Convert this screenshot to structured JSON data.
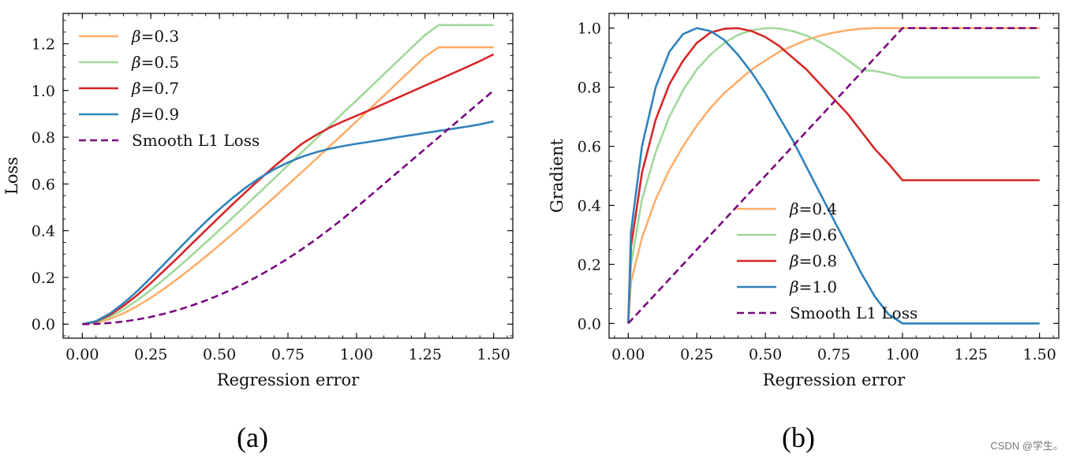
{
  "chart_data": [
    {
      "panel": "(a)",
      "type": "line",
      "xlabel": "Regression error",
      "ylabel": "Loss",
      "xlim": [
        -0.07,
        1.57
      ],
      "ylim": [
        -0.06,
        1.33
      ],
      "xticks": [
        0.0,
        0.25,
        0.5,
        0.75,
        1.0,
        1.25,
        1.5
      ],
      "xtick_labels": [
        "0.00",
        "0.25",
        "0.50",
        "0.75",
        "1.00",
        "1.25",
        "1.50"
      ],
      "yticks": [
        0.0,
        0.2,
        0.4,
        0.6,
        0.8,
        1.0,
        1.2
      ],
      "ytick_labels": [
        "0.0",
        "0.2",
        "0.4",
        "0.6",
        "0.8",
        "1.0",
        "1.2"
      ],
      "legend_position": "top-left",
      "x": [
        0,
        0.05,
        0.1,
        0.15,
        0.2,
        0.25,
        0.3,
        0.35,
        0.4,
        0.45,
        0.5,
        0.55,
        0.6,
        0.65,
        0.7,
        0.75,
        0.8,
        0.85,
        0.9,
        0.95,
        1.0,
        1.05,
        1.1,
        1.15,
        1.2,
        1.25,
        1.3,
        1.35,
        1.4,
        1.45,
        1.5
      ],
      "series": [
        {
          "name": "β=0.3",
          "color": "#fdae6b",
          "dash": "solid",
          "values": [
            0.0,
            0.006,
            0.022,
            0.046,
            0.077,
            0.113,
            0.153,
            0.196,
            0.242,
            0.289,
            0.338,
            0.388,
            0.439,
            0.491,
            0.543,
            0.597,
            0.65,
            0.704,
            0.759,
            0.813,
            0.868,
            0.923,
            0.978,
            1.034,
            1.09,
            1.145,
            1.185,
            1.185,
            1.185,
            1.185,
            1.185
          ]
        },
        {
          "name": "β=0.5",
          "color": "#a1d99b",
          "dash": "solid",
          "values": [
            0.0,
            0.009,
            0.031,
            0.063,
            0.102,
            0.146,
            0.194,
            0.244,
            0.296,
            0.349,
            0.403,
            0.458,
            0.513,
            0.568,
            0.624,
            0.68,
            0.735,
            0.791,
            0.847,
            0.903,
            0.958,
            1.014,
            1.07,
            1.126,
            1.182,
            1.238,
            1.28,
            1.28,
            1.28,
            1.28,
            1.28
          ]
        },
        {
          "name": "β=0.7",
          "color": "#d62728",
          "dash": "solid",
          "values": [
            0.0,
            0.011,
            0.039,
            0.078,
            0.124,
            0.176,
            0.231,
            0.287,
            0.345,
            0.402,
            0.459,
            0.515,
            0.57,
            0.623,
            0.675,
            0.724,
            0.771,
            0.808,
            0.84,
            0.867,
            0.892,
            0.917,
            0.943,
            0.969,
            0.995,
            1.021,
            1.047,
            1.073,
            1.099,
            1.126,
            1.155
          ]
        },
        {
          "name": "β=0.9",
          "color": "#3182bd",
          "dash": "solid",
          "values": [
            0.0,
            0.013,
            0.045,
            0.089,
            0.141,
            0.199,
            0.259,
            0.32,
            0.38,
            0.438,
            0.492,
            0.542,
            0.588,
            0.628,
            0.663,
            0.692,
            0.716,
            0.735,
            0.75,
            0.762,
            0.772,
            0.781,
            0.79,
            0.8,
            0.809,
            0.818,
            0.827,
            0.836,
            0.845,
            0.855,
            0.868
          ]
        },
        {
          "name": "Smooth L1 Loss",
          "color": "#7b0a80",
          "dash": "dashed",
          "values": [
            0.0,
            0.001,
            0.005,
            0.011,
            0.02,
            0.031,
            0.045,
            0.061,
            0.08,
            0.101,
            0.125,
            0.151,
            0.18,
            0.211,
            0.245,
            0.281,
            0.32,
            0.361,
            0.405,
            0.451,
            0.5,
            0.55,
            0.6,
            0.65,
            0.7,
            0.75,
            0.8,
            0.85,
            0.9,
            0.95,
            1.0
          ]
        }
      ]
    },
    {
      "panel": "(b)",
      "type": "line",
      "xlabel": "Regression error",
      "ylabel": "Gradient",
      "xlim": [
        -0.07,
        1.57
      ],
      "ylim": [
        -0.05,
        1.05
      ],
      "xticks": [
        0.0,
        0.25,
        0.5,
        0.75,
        1.0,
        1.25,
        1.5
      ],
      "xtick_labels": [
        "0.00",
        "0.25",
        "0.50",
        "0.75",
        "1.00",
        "1.25",
        "1.50"
      ],
      "yticks": [
        0.0,
        0.2,
        0.4,
        0.6,
        0.8,
        1.0
      ],
      "ytick_labels": [
        "0.0",
        "0.2",
        "0.4",
        "0.6",
        "0.8",
        "1.0"
      ],
      "legend_position": "lower-center",
      "x": [
        0,
        0.01,
        0.05,
        0.1,
        0.15,
        0.2,
        0.25,
        0.3,
        0.35,
        0.4,
        0.45,
        0.5,
        0.55,
        0.6,
        0.65,
        0.7,
        0.75,
        0.8,
        0.85,
        0.9,
        0.95,
        1.0,
        1.05,
        1.1,
        1.15,
        1.2,
        1.25,
        1.3,
        1.35,
        1.4,
        1.45,
        1.5
      ],
      "series": [
        {
          "name": "β=0.4",
          "color": "#fdae6b",
          "dash": "solid",
          "values": [
            0.0,
            0.14,
            0.29,
            0.42,
            0.52,
            0.6,
            0.67,
            0.73,
            0.78,
            0.82,
            0.86,
            0.89,
            0.92,
            0.94,
            0.96,
            0.975,
            0.985,
            0.993,
            0.998,
            1.0,
            1.0,
            1.0,
            1.0,
            1.0,
            1.0,
            1.0,
            1.0,
            1.0,
            1.0,
            1.0,
            1.0,
            1.0
          ]
        },
        {
          "name": "β=0.6",
          "color": "#a1d99b",
          "dash": "solid",
          "values": [
            0.0,
            0.2,
            0.42,
            0.58,
            0.7,
            0.79,
            0.86,
            0.91,
            0.95,
            0.977,
            0.993,
            1.0,
            0.999,
            0.99,
            0.975,
            0.953,
            0.925,
            0.892,
            0.858,
            0.855,
            0.845,
            0.833,
            0.833,
            0.833,
            0.833,
            0.833,
            0.833,
            0.833,
            0.833,
            0.833,
            0.833,
            0.833
          ]
        },
        {
          "name": "β=0.8",
          "color": "#d62728",
          "dash": "solid",
          "values": [
            0.0,
            0.26,
            0.51,
            0.69,
            0.81,
            0.89,
            0.95,
            0.985,
            0.998,
            1.0,
            0.99,
            0.97,
            0.94,
            0.9,
            0.86,
            0.81,
            0.76,
            0.71,
            0.65,
            0.59,
            0.54,
            0.485,
            0.485,
            0.485,
            0.485,
            0.485,
            0.485,
            0.485,
            0.485,
            0.485,
            0.485,
            0.485
          ]
        },
        {
          "name": "β=1.0",
          "color": "#3182bd",
          "dash": "solid",
          "values": [
            0.0,
            0.31,
            0.6,
            0.8,
            0.92,
            0.98,
            1.0,
            0.99,
            0.96,
            0.91,
            0.85,
            0.78,
            0.7,
            0.62,
            0.53,
            0.44,
            0.35,
            0.26,
            0.17,
            0.09,
            0.03,
            0.0,
            0.0,
            0.0,
            0.0,
            0.0,
            0.0,
            0.0,
            0.0,
            0.0,
            0.0,
            0.0
          ]
        },
        {
          "name": "Smooth L1 Loss",
          "color": "#7b0a80",
          "dash": "dashed",
          "values": [
            0.0,
            0.01,
            0.05,
            0.1,
            0.15,
            0.2,
            0.25,
            0.3,
            0.35,
            0.4,
            0.45,
            0.5,
            0.55,
            0.6,
            0.65,
            0.7,
            0.75,
            0.8,
            0.85,
            0.9,
            0.95,
            1.0,
            1.0,
            1.0,
            1.0,
            1.0,
            1.0,
            1.0,
            1.0,
            1.0,
            1.0,
            1.0
          ]
        }
      ]
    }
  ],
  "watermark": "CSDN @学生。"
}
